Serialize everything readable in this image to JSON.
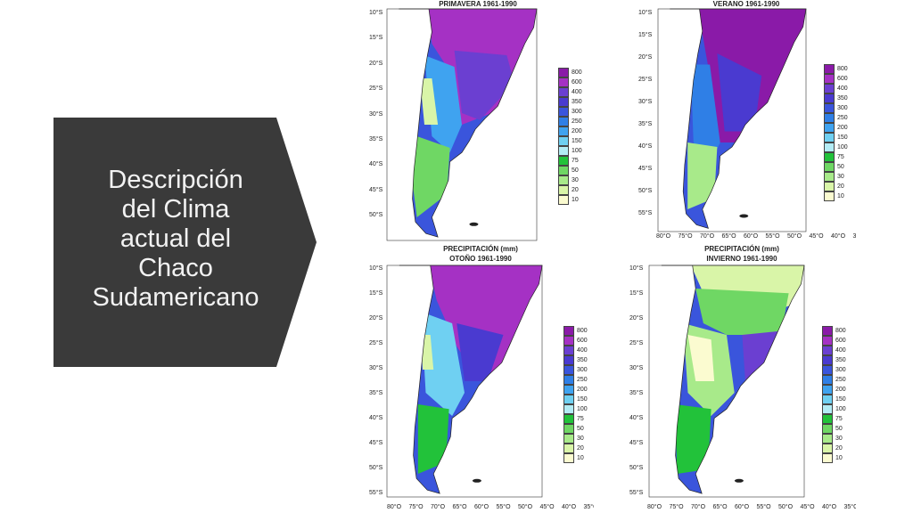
{
  "slide": {
    "title_lines": [
      "Descripción",
      "del Clima",
      "actual del",
      "Chaco",
      "Sudamericano"
    ],
    "arrow_color": "#3a3a3a",
    "title_color": "#f2f2f2"
  },
  "legend": {
    "values": [
      "800",
      "600",
      "400",
      "350",
      "300",
      "250",
      "200",
      "150",
      "100",
      "75",
      "50",
      "30",
      "20",
      "10"
    ],
    "colors": [
      "#8a1aa8",
      "#a531c4",
      "#6b3fd1",
      "#4a3ad0",
      "#3a55dc",
      "#2f7fe6",
      "#3fa3f0",
      "#6fd0f2",
      "#b3ecf5",
      "#22c23a",
      "#6fd764",
      "#a8ea8a",
      "#d9f5a8",
      "#fbfbd0"
    ]
  },
  "lat_labels": [
    "10°S",
    "15°S",
    "20°S",
    "25°S",
    "30°S",
    "35°S",
    "40°S",
    "45°S",
    "50°S",
    "55°S"
  ],
  "lon_labels": [
    "80°O",
    "75°O",
    "70°O",
    "65°O",
    "60°O",
    "55°O",
    "50°O",
    "45°O",
    "40°O",
    "35°O"
  ],
  "panels": [
    {
      "label_top": "",
      "label": "PRIMAVERA  1961-1990",
      "season": "primavera"
    },
    {
      "label_top": "",
      "label": "VERANO  1961-1990",
      "season": "verano"
    },
    {
      "label_top": "PRECIPITACIÓN  (mm)",
      "label": "OTOÑO  1961-1990",
      "season": "otono"
    },
    {
      "label_top": "PRECIPITACIÓN  (mm)",
      "label": "INVIERNO  1961-1990",
      "season": "invierno"
    }
  ]
}
